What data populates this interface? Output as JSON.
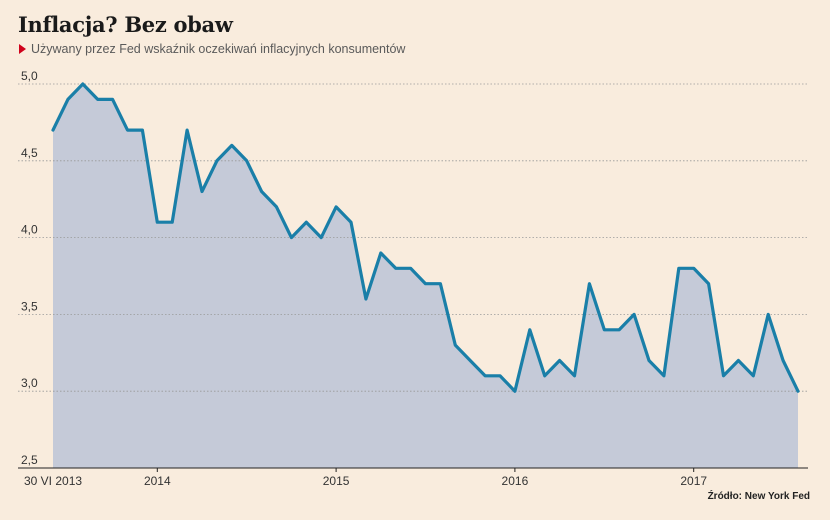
{
  "header": {
    "title": "Inflacja? Bez obaw",
    "subtitle": "Używany przez Fed wskaźnik oczekiwań inflacyjnych konsumentów",
    "marker_icon": "red-triangle-icon"
  },
  "source": "Źródło: New York Fed",
  "colors": {
    "background": "#f9ecdd",
    "line": "#1a7fa8",
    "area": "#c5cad8",
    "grid": "#999999",
    "marker": "#d0021b"
  },
  "chart_data": {
    "type": "area",
    "title": "Inflacja? Bez obaw",
    "subtitle": "Używany przez Fed wskaźnik oczekiwań inflacyjnych konsumentów",
    "xlabel": "",
    "ylabel": "",
    "ylim": [
      2.5,
      5.0
    ],
    "yticks": [
      "2,5",
      "3,0",
      "3,5",
      "4,0",
      "4,5",
      "5,0"
    ],
    "xticks": [
      "30 VI 2013",
      "2014",
      "2015",
      "2016",
      "2017"
    ],
    "grid": true,
    "start": "2013-06",
    "frequency": "monthly",
    "values": [
      4.7,
      4.9,
      5.0,
      4.9,
      4.9,
      4.7,
      4.7,
      4.1,
      4.1,
      4.7,
      4.3,
      4.5,
      4.6,
      4.5,
      4.3,
      4.2,
      4.0,
      4.1,
      4.0,
      4.2,
      4.1,
      3.6,
      3.9,
      3.8,
      3.8,
      3.7,
      3.7,
      3.3,
      3.2,
      3.1,
      3.1,
      3.0,
      3.4,
      3.1,
      3.2,
      3.1,
      3.7,
      3.4,
      3.4,
      3.5,
      3.2,
      3.1,
      3.8,
      3.8,
      3.7,
      3.1,
      3.2,
      3.1,
      3.5,
      3.2,
      3.0
    ]
  }
}
